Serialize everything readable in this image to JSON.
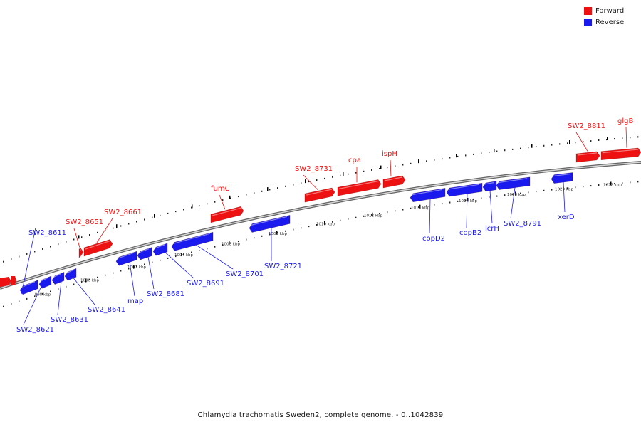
{
  "legend": {
    "forward_label": "Forward",
    "reverse_label": "Reverse",
    "forward_color": "#ee1111",
    "reverse_color": "#1a1aee"
  },
  "caption": "Chlamydia trachomatis Sweden2, complete genome. - 0..1042839",
  "ticks": [
    "998 kbp",
    "1000 kbp",
    "1002 kbp",
    "1004 kbp",
    "1006 kbp",
    "1008 kbp",
    "1010 kbp",
    "1012 kbp",
    "1014 kbp",
    "1016 kbp",
    "1018 kbp",
    "1020 kbp",
    "1022 kbp"
  ],
  "genes": [
    {
      "name": "SW2_8611",
      "strand": "reverse"
    },
    {
      "name": "SW2_8621",
      "strand": "reverse"
    },
    {
      "name": "SW2_8631",
      "strand": "reverse"
    },
    {
      "name": "SW2_8641",
      "strand": "reverse"
    },
    {
      "name": "SW2_8651",
      "strand": "forward"
    },
    {
      "name": "SW2_8661",
      "strand": "forward"
    },
    {
      "name": "map",
      "strand": "reverse"
    },
    {
      "name": "SW2_8681",
      "strand": "reverse"
    },
    {
      "name": "SW2_8691",
      "strand": "reverse"
    },
    {
      "name": "SW2_8701",
      "strand": "reverse"
    },
    {
      "name": "fumC",
      "strand": "forward"
    },
    {
      "name": "SW2_8721",
      "strand": "reverse"
    },
    {
      "name": "SW2_8731",
      "strand": "forward"
    },
    {
      "name": "cpa",
      "strand": "forward"
    },
    {
      "name": "ispH",
      "strand": "forward"
    },
    {
      "name": "copD2",
      "strand": "reverse"
    },
    {
      "name": "copB2",
      "strand": "reverse"
    },
    {
      "name": "lcrH",
      "strand": "reverse"
    },
    {
      "name": "SW2_8791",
      "strand": "reverse"
    },
    {
      "name": "xerD",
      "strand": "reverse"
    },
    {
      "name": "SW2_8811",
      "strand": "forward"
    },
    {
      "name": "glgB",
      "strand": "forward"
    }
  ]
}
